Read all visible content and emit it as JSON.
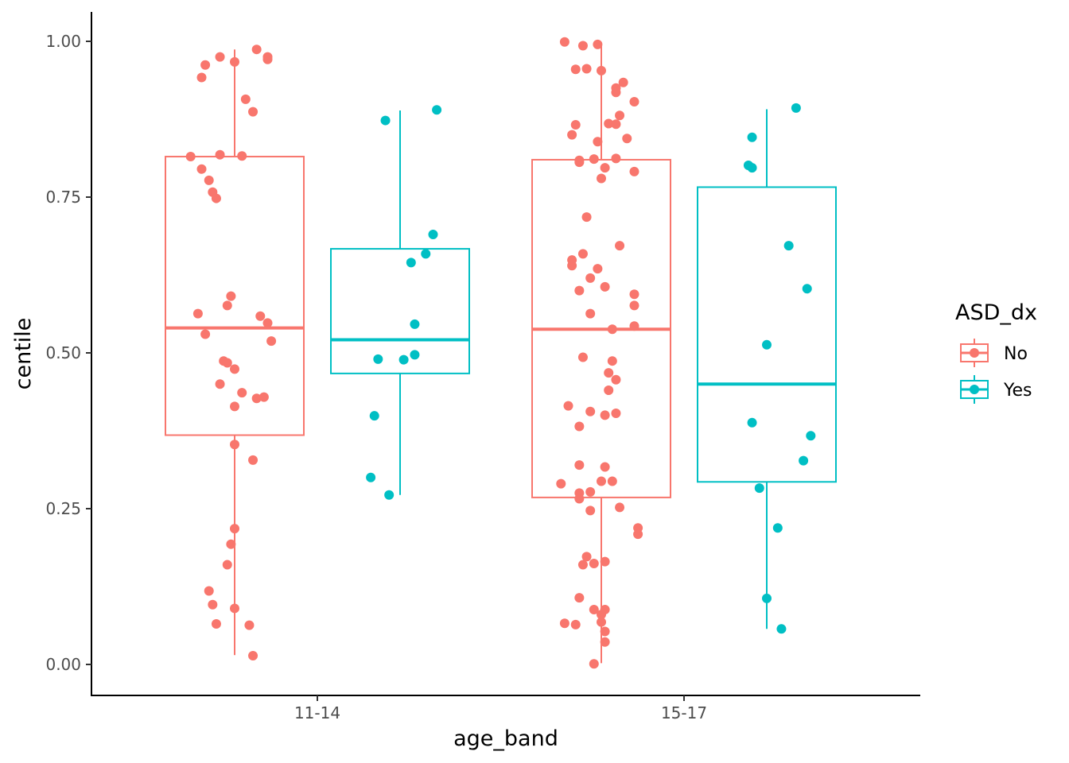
{
  "colors": {
    "No": "#F8766D",
    "Yes": "#00BFC4",
    "axis": "#000000",
    "tick_text": "#4d4d4d"
  },
  "chart_data": {
    "type": "boxplot",
    "xlabel": "age_band",
    "ylabel": "centile",
    "categories": [
      "11-14",
      "15-17"
    ],
    "ylim": [
      -0.05,
      1.05
    ],
    "yticks": [
      0,
      0.25,
      0.5,
      0.75,
      1
    ],
    "ytick_labels": [
      "0.00",
      "0.25",
      "0.50",
      "0.75",
      "1.00"
    ],
    "grid": false,
    "legend": {
      "title": "ASD_dx",
      "position": "right",
      "entries": [
        "No",
        "Yes"
      ]
    },
    "groups": [
      {
        "category": "11-14",
        "series": "No",
        "box": {
          "min": 0.015,
          "q1": 0.368,
          "median": 0.54,
          "q3": 0.815,
          "max": 0.987
        },
        "points": [
          [
            -0.12,
            0.815
          ],
          [
            -0.1,
            0.563
          ],
          [
            -0.09,
            0.942
          ],
          [
            -0.08,
            0.962
          ],
          [
            -0.09,
            0.795
          ],
          [
            -0.08,
            0.53
          ],
          [
            -0.07,
            0.777
          ],
          [
            -0.06,
            0.758
          ],
          [
            -0.05,
            0.748
          ],
          [
            -0.07,
            0.118
          ],
          [
            -0.06,
            0.096
          ],
          [
            -0.05,
            0.065
          ],
          [
            -0.04,
            0.975
          ],
          [
            -0.04,
            0.818
          ],
          [
            -0.04,
            0.45
          ],
          [
            -0.03,
            0.487
          ],
          [
            -0.02,
            0.484
          ],
          [
            -0.02,
            0.576
          ],
          [
            -0.01,
            0.591
          ],
          [
            -0.02,
            0.16
          ],
          [
            -0.01,
            0.193
          ],
          [
            0.0,
            0.218
          ],
          [
            0.0,
            0.474
          ],
          [
            0.0,
            0.414
          ],
          [
            0.0,
            0.353
          ],
          [
            0.0,
            0.09
          ],
          [
            0.0,
            0.967
          ],
          [
            0.02,
            0.436
          ],
          [
            0.02,
            0.816
          ],
          [
            0.03,
            0.907
          ],
          [
            0.04,
            0.063
          ],
          [
            0.05,
            0.887
          ],
          [
            0.05,
            0.014
          ],
          [
            0.05,
            0.328
          ],
          [
            0.06,
            0.987
          ],
          [
            0.06,
            0.427
          ],
          [
            0.07,
            0.559
          ],
          [
            0.08,
            0.429
          ],
          [
            0.09,
            0.975
          ],
          [
            0.09,
            0.971
          ],
          [
            0.09,
            0.548
          ],
          [
            0.1,
            0.519
          ]
        ]
      },
      {
        "category": "11-14",
        "series": "Yes",
        "box": {
          "min": 0.272,
          "q1": 0.467,
          "median": 0.521,
          "q3": 0.667,
          "max": 0.889
        },
        "points": [
          [
            -0.08,
            0.3
          ],
          [
            -0.07,
            0.399
          ],
          [
            -0.06,
            0.49
          ],
          [
            -0.04,
            0.873
          ],
          [
            -0.03,
            0.272
          ],
          [
            0.01,
            0.489
          ],
          [
            0.03,
            0.645
          ],
          [
            0.04,
            0.546
          ],
          [
            0.04,
            0.497
          ],
          [
            0.07,
            0.659
          ],
          [
            0.09,
            0.69
          ],
          [
            0.1,
            0.89
          ]
        ]
      },
      {
        "category": "15-17",
        "series": "No",
        "box": {
          "min": 0.002,
          "q1": 0.268,
          "median": 0.538,
          "q3": 0.81,
          "max": 0.998
        },
        "points": [
          [
            -0.11,
            0.29
          ],
          [
            -0.1,
            0.066
          ],
          [
            -0.1,
            0.999
          ],
          [
            -0.09,
            0.415
          ],
          [
            -0.08,
            0.85
          ],
          [
            -0.08,
            0.64
          ],
          [
            -0.08,
            0.649
          ],
          [
            -0.07,
            0.955
          ],
          [
            -0.07,
            0.866
          ],
          [
            -0.07,
            0.064
          ],
          [
            -0.06,
            0.809
          ],
          [
            -0.06,
            0.806
          ],
          [
            -0.06,
            0.6
          ],
          [
            -0.06,
            0.275
          ],
          [
            -0.06,
            0.266
          ],
          [
            -0.06,
            0.32
          ],
          [
            -0.06,
            0.382
          ],
          [
            -0.06,
            0.107
          ],
          [
            -0.05,
            0.993
          ],
          [
            -0.05,
            0.493
          ],
          [
            -0.05,
            0.659
          ],
          [
            -0.05,
            0.16
          ],
          [
            -0.04,
            0.956
          ],
          [
            -0.04,
            0.718
          ],
          [
            -0.04,
            0.173
          ],
          [
            -0.03,
            0.62
          ],
          [
            -0.03,
            0.563
          ],
          [
            -0.03,
            0.406
          ],
          [
            -0.03,
            0.277
          ],
          [
            -0.03,
            0.247
          ],
          [
            -0.02,
            0.811
          ],
          [
            -0.02,
            0.088
          ],
          [
            -0.02,
            0.001
          ],
          [
            -0.02,
            0.162
          ],
          [
            -0.01,
            0.995
          ],
          [
            -0.01,
            0.839
          ],
          [
            -0.01,
            0.635
          ],
          [
            0.0,
            0.78
          ],
          [
            0.0,
            0.068
          ],
          [
            0.0,
            0.08
          ],
          [
            0.0,
            0.294
          ],
          [
            0.0,
            0.953
          ],
          [
            0.01,
            0.053
          ],
          [
            0.01,
            0.036
          ],
          [
            0.01,
            0.165
          ],
          [
            0.01,
            0.606
          ],
          [
            0.01,
            0.317
          ],
          [
            0.01,
            0.4
          ],
          [
            0.01,
            0.797
          ],
          [
            0.01,
            0.088
          ],
          [
            0.02,
            0.468
          ],
          [
            0.02,
            0.868
          ],
          [
            0.02,
            0.44
          ],
          [
            0.03,
            0.487
          ],
          [
            0.03,
            0.294
          ],
          [
            0.03,
            0.538
          ],
          [
            0.04,
            0.925
          ],
          [
            0.04,
            0.918
          ],
          [
            0.04,
            0.867
          ],
          [
            0.04,
            0.403
          ],
          [
            0.04,
            0.812
          ],
          [
            0.04,
            0.457
          ],
          [
            0.05,
            0.252
          ],
          [
            0.05,
            0.672
          ],
          [
            0.05,
            0.881
          ],
          [
            0.06,
            0.934
          ],
          [
            0.07,
            0.844
          ],
          [
            0.09,
            0.903
          ],
          [
            0.09,
            0.576
          ],
          [
            0.09,
            0.543
          ],
          [
            0.09,
            0.791
          ],
          [
            0.09,
            0.594
          ],
          [
            0.1,
            0.219
          ],
          [
            0.1,
            0.209
          ]
        ]
      },
      {
        "category": "15-17",
        "series": "Yes",
        "box": {
          "min": 0.057,
          "q1": 0.293,
          "median": 0.45,
          "q3": 0.766,
          "max": 0.891
        },
        "points": [
          [
            -0.05,
            0.801
          ],
          [
            -0.04,
            0.846
          ],
          [
            -0.04,
            0.388
          ],
          [
            -0.04,
            0.797
          ],
          [
            -0.02,
            0.283
          ],
          [
            0.0,
            0.513
          ],
          [
            0.0,
            0.106
          ],
          [
            0.03,
            0.219
          ],
          [
            0.04,
            0.057
          ],
          [
            0.06,
            0.672
          ],
          [
            0.08,
            0.893
          ],
          [
            0.1,
            0.327
          ],
          [
            0.11,
            0.603
          ],
          [
            0.12,
            0.367
          ]
        ]
      }
    ]
  }
}
